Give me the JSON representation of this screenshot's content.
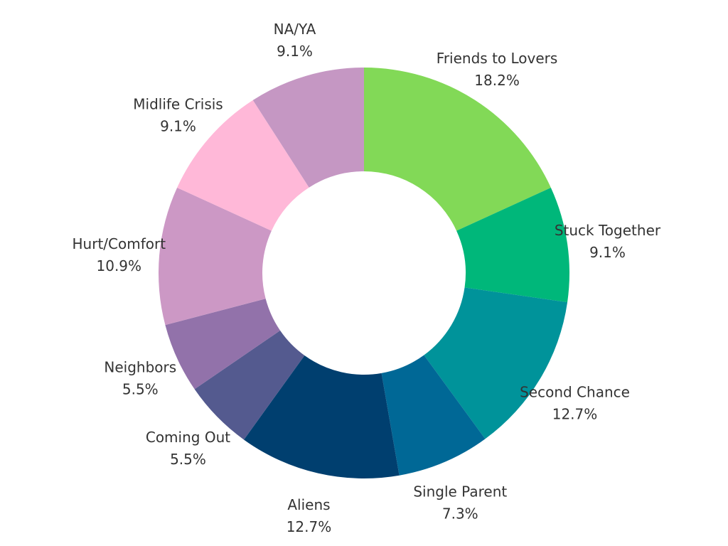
{
  "chart_data": {
    "type": "pie",
    "variant": "donut",
    "title": "",
    "slices": [
      {
        "label": "Friends to Lovers",
        "value": 18.2,
        "value_label": "18.2%",
        "color": "#82d957"
      },
      {
        "label": "Stuck Together",
        "value": 9.1,
        "value_label": "9.1%",
        "color": "#00b77a"
      },
      {
        "label": "Second Chance",
        "value": 12.7,
        "value_label": "12.7%",
        "color": "#00939a"
      },
      {
        "label": "Single Parent",
        "value": 7.3,
        "value_label": "7.3%",
        "color": "#006896"
      },
      {
        "label": "Aliens",
        "value": 12.7,
        "value_label": "12.7%",
        "color": "#003f6f"
      },
      {
        "label": "Coming Out",
        "value": 5.5,
        "value_label": "5.5%",
        "color": "#545a8f"
      },
      {
        "label": "Neighbors",
        "value": 5.5,
        "value_label": "5.5%",
        "color": "#9272aa"
      },
      {
        "label": "Hurt/Comfort",
        "value": 10.9,
        "value_label": "10.9%",
        "color": "#cc98c5"
      },
      {
        "label": "Midlife Crisis",
        "value": 9.1,
        "value_label": "9.1%",
        "color": "#ffb8d8"
      },
      {
        "label": "NA/YA",
        "value": 9.1,
        "value_label": "9.1%",
        "color": "#c597c3"
      }
    ],
    "start": "top",
    "direction": "clockwise",
    "legend": "none"
  }
}
